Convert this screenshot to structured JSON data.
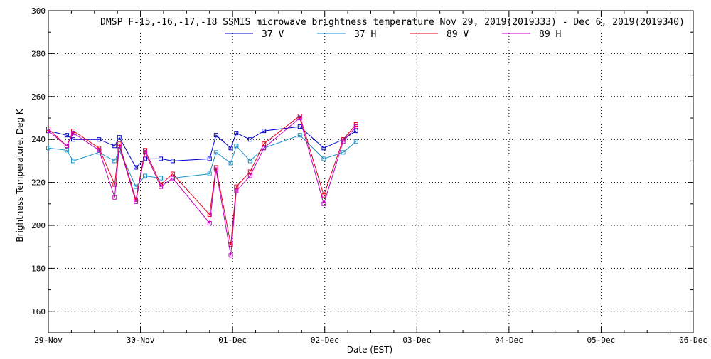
{
  "chart_data": {
    "type": "line",
    "title": "DMSP F-15,-16,-17,-18 SSMIS microwave brightness temperature Nov 29, 2019(2019333) - Dec  6, 2019(2019340)",
    "xlabel": "Date (EST)",
    "ylabel": "Brightness Temperature, Deg K",
    "ylim": [
      150,
      300
    ],
    "xlim": [
      0,
      7
    ],
    "grid": true,
    "legend_position": "top",
    "x_tick_labels": [
      "29-Nov",
      "30-Nov",
      "01-Dec",
      "02-Dec",
      "03-Dec",
      "04-Dec",
      "05-Dec",
      "06-Dec"
    ],
    "y_ticks": [
      160,
      180,
      200,
      220,
      240,
      260,
      280,
      300
    ],
    "x": [
      0.0,
      0.2,
      0.27,
      0.55,
      0.72,
      0.77,
      0.95,
      1.05,
      1.22,
      1.35,
      1.75,
      1.82,
      1.98,
      2.04,
      2.19,
      2.34,
      2.73,
      2.99,
      3.2,
      3.34
    ],
    "series": [
      {
        "name": "37 V",
        "color": "#0000c8",
        "values": [
          244,
          242,
          240,
          240,
          237,
          241,
          227,
          231,
          231,
          230,
          231,
          242,
          236,
          243,
          240,
          244,
          246,
          236,
          240,
          244
        ]
      },
      {
        "name": "37 H",
        "color": "#1e90c8",
        "values": [
          236,
          235,
          230,
          234,
          230,
          235,
          218,
          223,
          222,
          222,
          224,
          234,
          229,
          237,
          230,
          236,
          242,
          231,
          234,
          239
        ]
      },
      {
        "name": "89 V",
        "color": "#e0001e",
        "values": [
          245,
          237,
          244,
          236,
          219,
          238,
          212,
          235,
          219,
          224,
          205,
          227,
          191,
          218,
          225,
          238,
          251,
          214,
          240,
          247
        ]
      },
      {
        "name": "89 H",
        "color": "#c000c0",
        "values": [
          244,
          237,
          243,
          235,
          213,
          237,
          211,
          234,
          218,
          222,
          201,
          226,
          186,
          216,
          223,
          236,
          250,
          210,
          239,
          246
        ]
      }
    ]
  }
}
